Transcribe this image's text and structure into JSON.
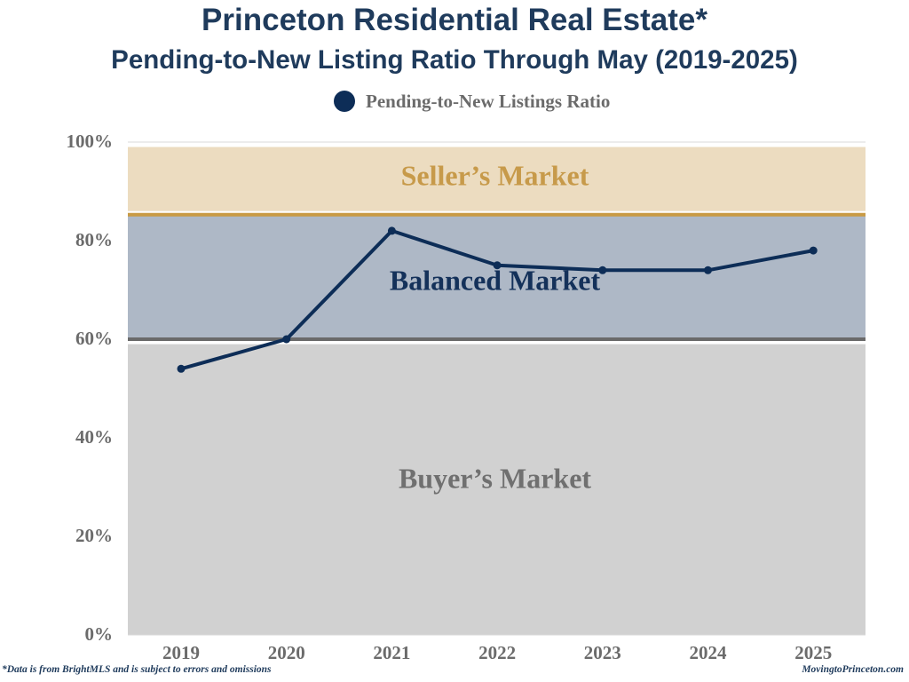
{
  "colors": {
    "title": "#1f3b5c",
    "line": "#0d2d57",
    "seller_zone": "#ecdcc0",
    "seller_text": "#c79a4a",
    "seller_line": "#c99a44",
    "balanced_zone": "#aeb8c6",
    "balanced_text": "#14315a",
    "buyer_zone": "#d1d1d1",
    "buyer_text": "#707070",
    "divider_line": "#6a6a6a",
    "axis_text": "#6b6b6b"
  },
  "chart_data": {
    "type": "line",
    "title": "Princeton Residential Real Estate*",
    "subtitle": "Pending-to-New Listing Ratio Through May (2019-2025)",
    "legend": "Pending-to-New Listings Ratio",
    "categories": [
      "2019",
      "2020",
      "2021",
      "2022",
      "2023",
      "2024",
      "2025"
    ],
    "series": [
      {
        "name": "Pending-to-New Listings Ratio",
        "values": [
          54,
          60,
          82,
          75,
          74,
          74,
          78
        ]
      }
    ],
    "ylim": [
      0,
      100
    ],
    "y_ticks": [
      0,
      20,
      40,
      60,
      80,
      100
    ],
    "y_tick_labels": [
      "0%",
      "20%",
      "40%",
      "60%",
      "80%",
      "100%"
    ],
    "zones": [
      {
        "name": "Seller's Market",
        "label": "Seller’s Market",
        "from": 86,
        "to": 99
      },
      {
        "name": "Balanced Market",
        "label": "Balanced Market",
        "from": 60,
        "to": 85
      },
      {
        "name": "Buyer's Market",
        "label": "Buyer’s Market",
        "from": 0,
        "to": 59
      }
    ],
    "thresholds": [
      86,
      60
    ]
  },
  "footnote_left": "*Data is from BrightMLS and is subject to errors and omissions",
  "footnote_right": "MovingtoPrinceton.com"
}
